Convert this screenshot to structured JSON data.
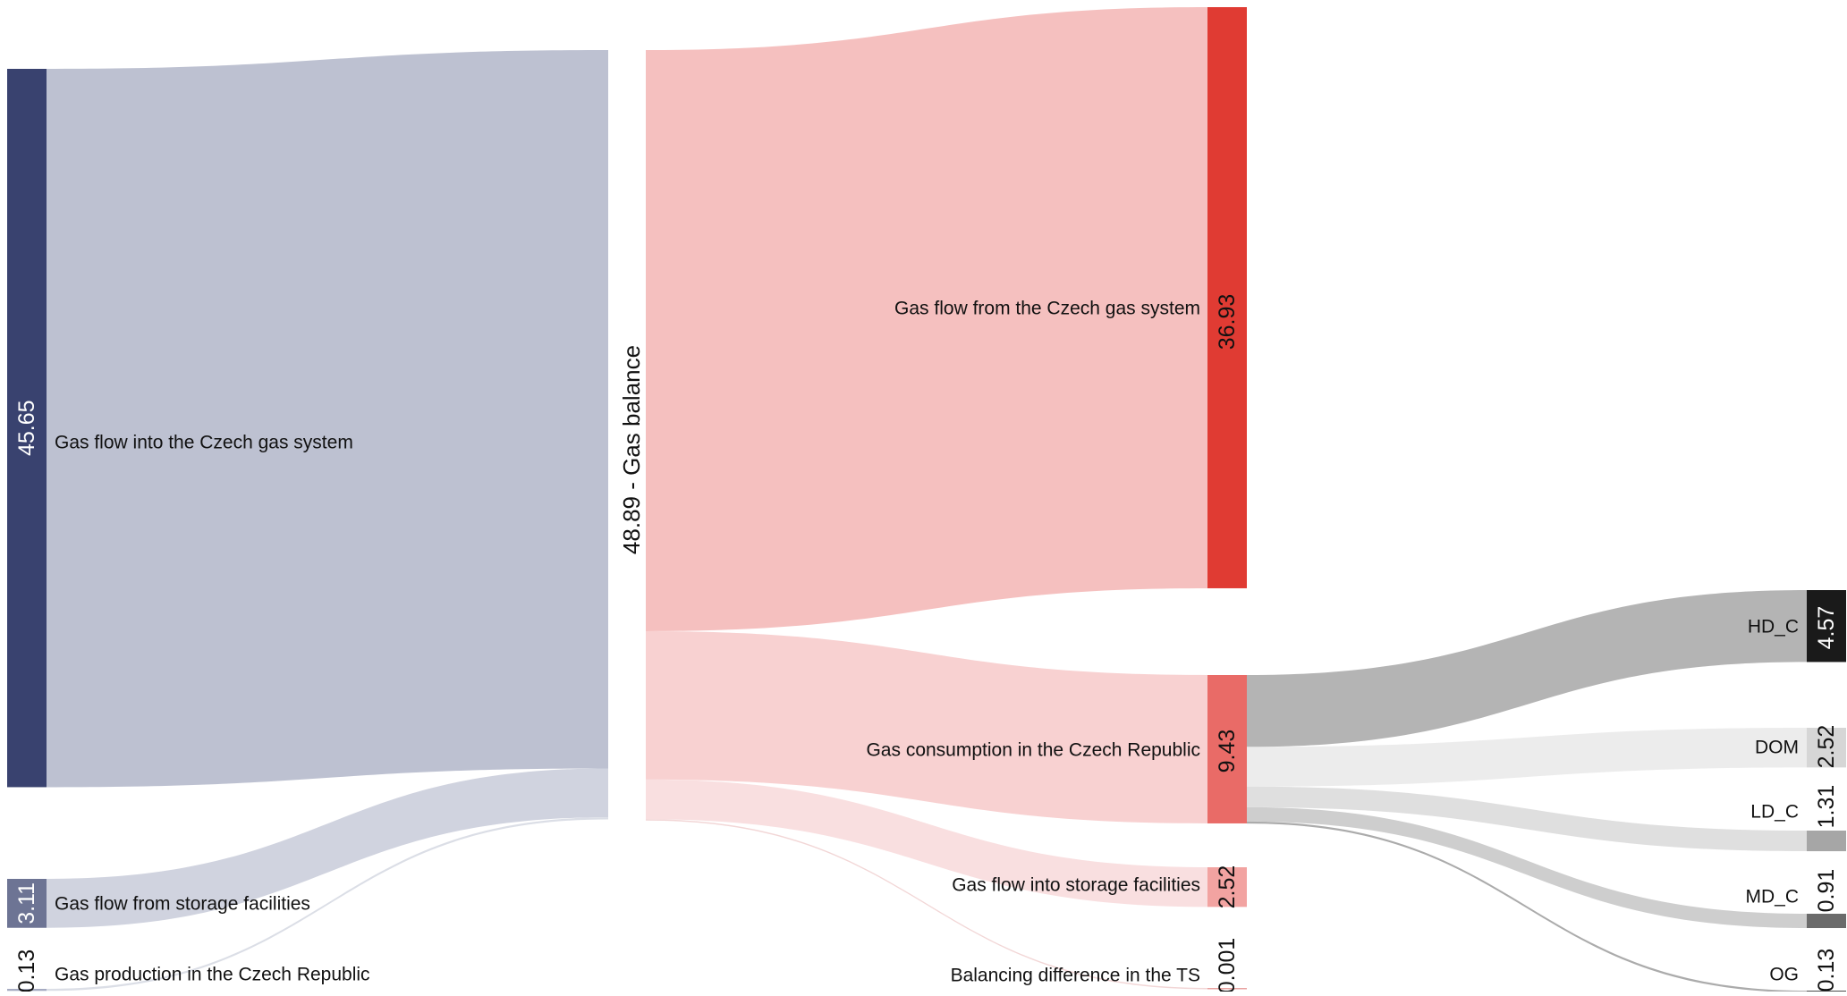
{
  "chart_data": {
    "type": "sankey",
    "title": "",
    "balance_node": {
      "value": 48.89,
      "label": "48.89 - Gas balance"
    },
    "sources": [
      {
        "id": "inflow",
        "label": "Gas flow into the Czech gas system",
        "value": 45.65,
        "value_label": "45.65",
        "color": "#39426f",
        "link_color": "#bcc0d0"
      },
      {
        "id": "storage_out",
        "label": "Gas flow from storage facilities",
        "value": 3.11,
        "value_label": "3.11",
        "color": "#6d7494",
        "link_color": "#cfd2de"
      },
      {
        "id": "production",
        "label": "Gas production in the Czech Republic",
        "value": 0.13,
        "value_label": "0.13",
        "color": "#a6abc2",
        "link_color": "#dadde6"
      }
    ],
    "sinks": [
      {
        "id": "outflow",
        "label": "Gas flow from the Czech gas system",
        "value": 36.93,
        "value_label": "36.93",
        "color": "#e03b33",
        "link_color": "#f5bfbe"
      },
      {
        "id": "consumption",
        "label": "Gas consumption in the Czech Republic",
        "value": 9.43,
        "value_label": "9.43",
        "color": "#e96b67",
        "link_color": "#f8d0d0"
      },
      {
        "id": "storage_in",
        "label": "Gas flow into storage facilities",
        "value": 2.52,
        "value_label": "2.52",
        "color": "#f2a3a1",
        "link_color": "#f9dedf"
      },
      {
        "id": "balancing",
        "label": "Balancing difference in the TS",
        "value": 0.001,
        "value_label": "0.001",
        "color": "#e9a2a0",
        "link_color": "#f2d5d5"
      }
    ],
    "consumption_breakdown": [
      {
        "id": "hd",
        "label": "HD_C",
        "value": 4.57,
        "value_label": "4.57",
        "color": "#1a1a1a",
        "link_color": "#b3b3b3"
      },
      {
        "id": "dom",
        "label": "DOM",
        "value": 2.52,
        "value_label": "2.52",
        "color": "#d6d6d6",
        "link_color": "#ececec"
      },
      {
        "id": "ld",
        "label": "LD_C",
        "value": 1.31,
        "value_label": "1.31",
        "color": "#a6a6a6",
        "link_color": "#dedede"
      },
      {
        "id": "md",
        "label": "MD_C",
        "value": 0.91,
        "value_label": "0.91",
        "color": "#6b6b6b",
        "link_color": "#cdcdcd"
      },
      {
        "id": "og",
        "label": "OG",
        "value": 0.13,
        "value_label": "0.13",
        "color": "#4a4a4a",
        "link_color": "#a9a9a9"
      }
    ]
  }
}
